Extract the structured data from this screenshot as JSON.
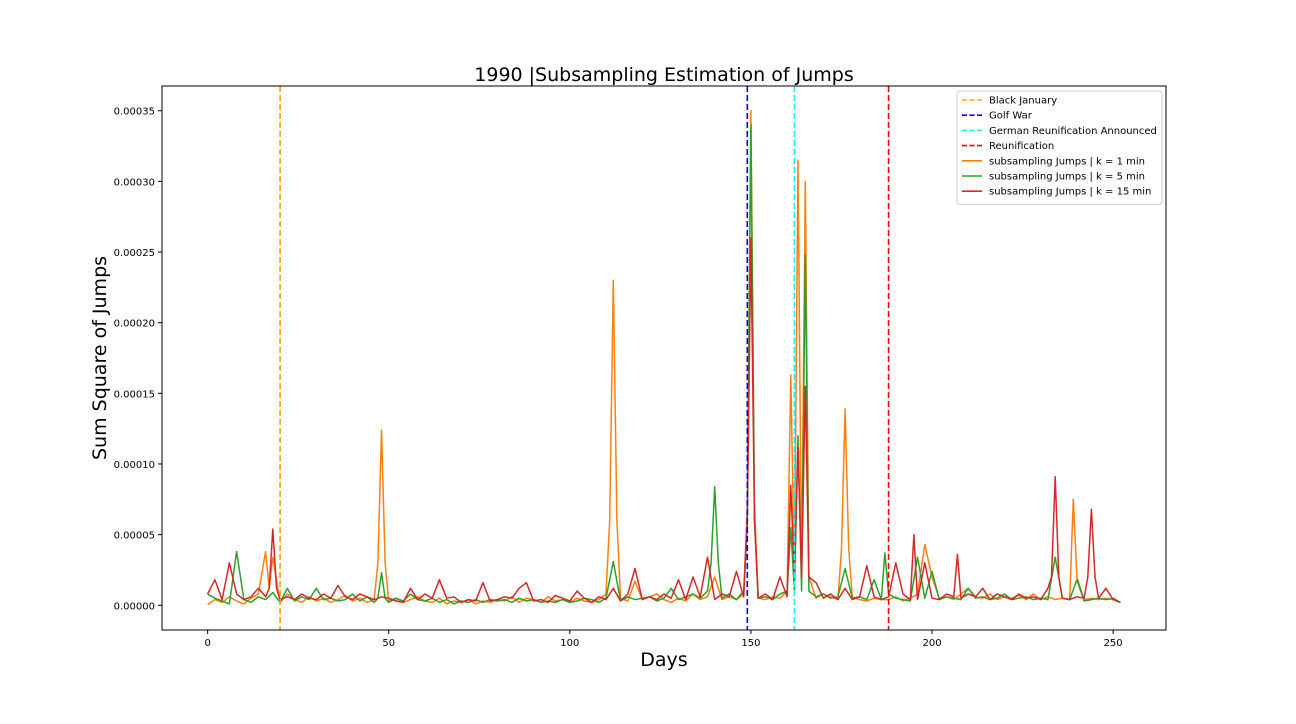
{
  "chart_data": {
    "type": "line",
    "title": "1990 |Subsampling Estimation of Jumps",
    "xlabel": "Days",
    "ylabel": "Sum Square of Jumps",
    "xlim": [
      -12.6,
      264.6
    ],
    "ylim": [
      -1.75e-05,
      0.0003675
    ],
    "x_ticks": [
      0,
      50,
      100,
      150,
      200,
      250
    ],
    "x_tick_labels": [
      "0",
      "50",
      "100",
      "150",
      "200",
      "250"
    ],
    "y_ticks": [
      0,
      5e-05,
      0.0001,
      0.00015,
      0.0002,
      0.00025,
      0.0003,
      0.00035
    ],
    "y_tick_labels": [
      "0.00000",
      "0.00005",
      "0.00010",
      "0.00015",
      "0.00020",
      "0.00025",
      "0.00030",
      "0.00035"
    ],
    "grid": false,
    "legend_position": "top-right",
    "events": [
      {
        "name": "Black January",
        "x": 20,
        "color": "#ffa500"
      },
      {
        "name": "Golf War",
        "x": 149,
        "color": "#0000ff"
      },
      {
        "name": "German Reunification Announced",
        "x": 162,
        "color": "#00ffff"
      },
      {
        "name": "Reunification",
        "x": 188,
        "color": "#ff0000"
      }
    ],
    "series": [
      {
        "name": "subsampling Jumps | k = 1 min",
        "color": "#ff7f0e",
        "x": [
          0,
          2,
          4,
          6,
          8,
          10,
          12,
          14,
          16,
          17,
          18,
          20,
          22,
          24,
          26,
          28,
          30,
          32,
          34,
          36,
          38,
          40,
          42,
          44,
          46,
          47,
          48,
          49,
          50,
          52,
          54,
          56,
          58,
          60,
          62,
          64,
          66,
          68,
          70,
          72,
          74,
          76,
          78,
          80,
          82,
          84,
          86,
          88,
          90,
          92,
          94,
          96,
          98,
          100,
          102,
          104,
          106,
          108,
          110,
          111,
          112,
          113,
          114,
          116,
          118,
          120,
          122,
          124,
          126,
          128,
          130,
          132,
          134,
          136,
          138,
          140,
          142,
          144,
          146,
          148,
          149,
          150,
          151,
          152,
          154,
          156,
          158,
          160,
          161,
          162,
          163,
          164,
          165,
          166,
          168,
          170,
          172,
          174,
          175,
          176,
          177,
          178,
          180,
          182,
          184,
          186,
          188,
          190,
          192,
          194,
          196,
          198,
          200,
          202,
          204,
          206,
          208,
          210,
          212,
          214,
          216,
          218,
          220,
          222,
          224,
          226,
          228,
          230,
          232,
          234,
          236,
          238,
          239,
          240,
          242,
          244,
          246,
          248,
          250,
          252
        ],
        "values": [
          5e-07,
          4e-06,
          2e-06,
          6e-06,
          3e-06,
          1e-06,
          5e-06,
          8e-06,
          3.8e-05,
          1.2e-05,
          3.4e-05,
          2e-06,
          8e-06,
          4e-06,
          2e-06,
          6e-06,
          3e-06,
          5e-06,
          2e-06,
          4e-06,
          7e-06,
          3e-06,
          5e-06,
          2e-06,
          4e-06,
          3e-05,
          0.000124,
          3e-05,
          3e-06,
          5e-06,
          2e-06,
          4e-06,
          6e-06,
          3e-06,
          2e-06,
          5e-06,
          1e-06,
          3e-06,
          2e-06,
          4e-06,
          1e-06,
          3e-06,
          2e-06,
          4e-06,
          3e-06,
          6e-06,
          2e-06,
          5e-06,
          4e-06,
          2e-06,
          6e-06,
          3e-06,
          4e-06,
          2e-06,
          5e-06,
          3e-06,
          2e-06,
          4e-06,
          8e-06,
          6e-05,
          0.00023,
          6e-05,
          5e-06,
          3e-06,
          1.7e-05,
          4e-06,
          6e-06,
          8e-06,
          4e-06,
          2e-06,
          5e-06,
          3e-06,
          8e-06,
          4e-06,
          6e-06,
          2e-05,
          4e-06,
          6e-06,
          4e-06,
          8e-06,
          7e-05,
          0.00035,
          7e-05,
          5e-06,
          4e-06,
          6e-06,
          5e-06,
          1e-05,
          0.000163,
          2e-05,
          0.000315,
          2e-05,
          0.0003,
          2e-05,
          5e-06,
          8e-06,
          6e-06,
          4e-06,
          4e-05,
          0.000139,
          4e-05,
          6e-06,
          4e-06,
          3e-06,
          5e-06,
          4e-06,
          4e-06,
          6e-06,
          3e-06,
          5e-06,
          8e-06,
          4.3e-05,
          2e-05,
          5e-06,
          6e-06,
          4e-06,
          8e-06,
          1.2e-05,
          6e-06,
          5e-06,
          8e-06,
          4e-06,
          6e-06,
          5e-06,
          7e-06,
          4e-06,
          8e-06,
          4e-06,
          6e-06,
          4e-06,
          5e-06,
          4e-06,
          7.5e-05,
          2e-05,
          4e-06,
          5e-06,
          4e-06,
          5e-06,
          4e-06,
          2e-06
        ]
      },
      {
        "name": "subsampling Jumps | k = 5 min",
        "color": "#2ca02c",
        "x": [
          0,
          2,
          4,
          6,
          8,
          10,
          12,
          14,
          16,
          18,
          20,
          22,
          24,
          26,
          28,
          30,
          32,
          34,
          36,
          38,
          40,
          42,
          44,
          46,
          47,
          48,
          49,
          50,
          52,
          54,
          56,
          58,
          60,
          62,
          64,
          66,
          68,
          70,
          72,
          74,
          76,
          78,
          80,
          82,
          84,
          86,
          88,
          90,
          92,
          94,
          96,
          98,
          100,
          102,
          104,
          106,
          108,
          110,
          112,
          114,
          116,
          118,
          120,
          122,
          124,
          126,
          128,
          130,
          132,
          134,
          136,
          138,
          139,
          140,
          141,
          142,
          144,
          146,
          148,
          149,
          150,
          151,
          152,
          154,
          156,
          158,
          160,
          161,
          162,
          163,
          164,
          165,
          166,
          168,
          170,
          172,
          174,
          176,
          178,
          180,
          182,
          184,
          186,
          187,
          188,
          190,
          192,
          194,
          196,
          198,
          200,
          202,
          204,
          206,
          208,
          210,
          212,
          214,
          216,
          218,
          220,
          222,
          224,
          226,
          228,
          230,
          232,
          234,
          236,
          238,
          240,
          242,
          244,
          246,
          248,
          250,
          252
        ],
        "values": [
          8e-06,
          5e-06,
          3e-06,
          1e-06,
          3.8e-05,
          4e-06,
          2e-06,
          6e-06,
          4e-06,
          9e-06,
          2e-06,
          1.2e-05,
          3e-06,
          6e-06,
          4e-06,
          1.2e-05,
          4e-06,
          5e-06,
          3e-06,
          4e-06,
          8e-06,
          3e-06,
          6e-06,
          2e-06,
          5e-06,
          2.3e-05,
          5e-06,
          2e-06,
          5e-06,
          3e-06,
          8e-06,
          4e-06,
          3e-06,
          5e-06,
          2e-06,
          4e-06,
          1e-06,
          3e-06,
          2e-06,
          4e-06,
          2e-06,
          4e-06,
          3e-06,
          4e-06,
          2e-06,
          5e-06,
          3e-06,
          4e-06,
          2e-06,
          3e-06,
          2e-06,
          4e-06,
          2e-06,
          3e-06,
          5e-06,
          4e-06,
          2e-06,
          5e-06,
          3.1e-05,
          3e-06,
          6e-06,
          4e-06,
          5e-06,
          6e-06,
          3e-06,
          5e-06,
          1.2e-05,
          4e-06,
          6e-06,
          8e-06,
          5e-06,
          1e-05,
          3e-05,
          8.4e-05,
          3e-05,
          5e-06,
          8e-06,
          4e-06,
          1e-05,
          6e-05,
          0.00034,
          6e-05,
          5e-06,
          6e-06,
          4e-06,
          8e-06,
          1e-05,
          5.5e-05,
          1e-05,
          0.00012,
          1e-05,
          0.000248,
          1e-05,
          6e-06,
          8e-06,
          5e-06,
          6e-06,
          2.6e-05,
          5e-06,
          6e-06,
          4e-06,
          1.8e-05,
          4e-06,
          3.7e-05,
          8e-06,
          5e-06,
          4e-06,
          3e-06,
          3.4e-05,
          5e-06,
          2.4e-05,
          4e-06,
          6e-06,
          5e-06,
          4e-06,
          1.2e-05,
          5e-06,
          6e-06,
          4e-06,
          5e-06,
          8e-06,
          4e-06,
          5e-06,
          6e-06,
          4e-06,
          5e-06,
          4e-06,
          3.4e-05,
          5e-06,
          4e-06,
          1.8e-05,
          3e-06,
          4e-06,
          5e-06,
          4e-06,
          5e-06,
          2e-06
        ]
      },
      {
        "name": "subsampling Jumps | k = 15 min",
        "color": "#d62728",
        "x": [
          0,
          2,
          4,
          6,
          8,
          10,
          12,
          14,
          16,
          17,
          18,
          19,
          20,
          22,
          24,
          26,
          28,
          30,
          32,
          34,
          36,
          38,
          40,
          42,
          44,
          46,
          48,
          50,
          52,
          54,
          56,
          58,
          60,
          62,
          64,
          66,
          68,
          70,
          72,
          74,
          76,
          78,
          80,
          82,
          84,
          86,
          88,
          90,
          92,
          94,
          96,
          98,
          100,
          102,
          104,
          106,
          108,
          110,
          112,
          114,
          116,
          118,
          120,
          122,
          124,
          126,
          128,
          130,
          132,
          134,
          136,
          138,
          140,
          142,
          144,
          146,
          148,
          149,
          150,
          151,
          152,
          154,
          156,
          158,
          160,
          161,
          162,
          163,
          164,
          165,
          166,
          168,
          170,
          172,
          174,
          176,
          178,
          180,
          182,
          184,
          186,
          188,
          190,
          192,
          194,
          195,
          196,
          198,
          200,
          202,
          204,
          206,
          207,
          208,
          210,
          212,
          214,
          216,
          218,
          220,
          222,
          224,
          226,
          228,
          230,
          232,
          233,
          234,
          235,
          236,
          238,
          240,
          242,
          243,
          244,
          245,
          246,
          248,
          250,
          252
        ],
        "values": [
          8e-06,
          1.8e-05,
          4e-06,
          3e-05,
          8e-06,
          4e-06,
          6e-06,
          1.2e-05,
          6e-06,
          1.2e-05,
          5.4e-05,
          1.2e-05,
          4e-06,
          6e-06,
          4e-06,
          8e-06,
          5e-06,
          4e-06,
          8e-06,
          5e-06,
          1.4e-05,
          6e-06,
          4e-06,
          8e-06,
          6e-06,
          4e-06,
          6e-06,
          5e-06,
          3e-06,
          2e-06,
          1.2e-05,
          4e-06,
          8e-06,
          5e-06,
          1.8e-05,
          5e-06,
          6e-06,
          2e-06,
          4e-06,
          3e-06,
          1.6e-05,
          3e-06,
          4e-06,
          6e-06,
          5e-06,
          1.2e-05,
          1.6e-05,
          3e-06,
          4e-06,
          2e-06,
          7e-06,
          5e-06,
          3e-06,
          1e-05,
          5e-06,
          2e-06,
          6e-06,
          4e-06,
          1.2e-05,
          3e-06,
          8e-06,
          2.6e-05,
          4e-06,
          6e-06,
          4e-06,
          8e-06,
          5e-06,
          1.8e-05,
          4e-06,
          2e-05,
          6e-06,
          3.4e-05,
          4e-06,
          8e-06,
          6e-06,
          2.4e-05,
          6e-06,
          6e-05,
          0.00026,
          6e-05,
          5e-06,
          8e-06,
          4e-06,
          2e-05,
          6e-06,
          8.5e-05,
          2e-05,
          0.000112,
          2e-05,
          0.000155,
          2e-05,
          1.6e-05,
          5e-06,
          8e-06,
          4e-06,
          1.2e-05,
          4e-06,
          6e-06,
          2.8e-05,
          6e-06,
          4e-06,
          6e-06,
          3e-05,
          8e-06,
          4e-06,
          5e-05,
          4e-06,
          3e-05,
          5e-06,
          4e-06,
          8e-06,
          6e-06,
          3.6e-05,
          5e-06,
          8e-06,
          6e-06,
          1.2e-05,
          4e-06,
          8e-06,
          6e-06,
          4e-06,
          8e-06,
          5e-06,
          6e-06,
          4e-06,
          1.2e-05,
          2e-05,
          9.1e-05,
          2e-05,
          5e-06,
          4e-06,
          6e-06,
          5e-06,
          2e-05,
          6.8e-05,
          2e-05,
          5e-06,
          1.2e-05,
          4e-06,
          2e-06
        ]
      }
    ]
  }
}
